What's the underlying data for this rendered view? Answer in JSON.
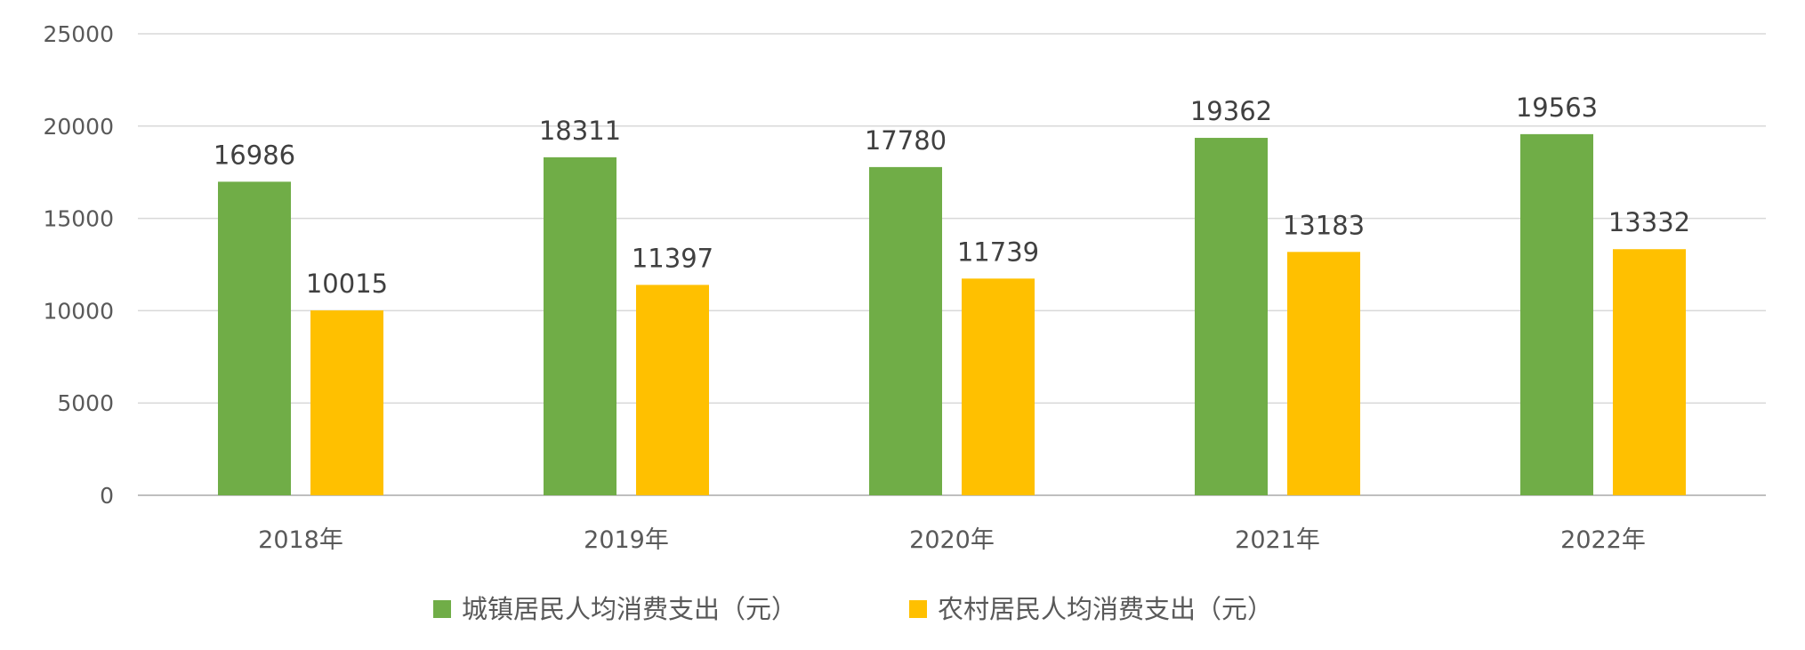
{
  "chart_data": {
    "type": "bar",
    "categories": [
      "2018年",
      "2019年",
      "2020年",
      "2021年",
      "2022年"
    ],
    "series": [
      {
        "name": "城镇居民人均消费支出（元）",
        "color": "#70ad47",
        "values": [
          16986,
          18311,
          17780,
          19362,
          19563
        ]
      },
      {
        "name": "农村居民人均消费支出（元）",
        "color": "#ffc000",
        "values": [
          10015,
          11397,
          11739,
          13183,
          13332
        ]
      }
    ],
    "ylim": [
      0,
      25000
    ],
    "yticks": [
      0,
      5000,
      10000,
      15000,
      20000,
      25000
    ],
    "grid": true,
    "legend_position": "bottom",
    "data_labels": true
  }
}
